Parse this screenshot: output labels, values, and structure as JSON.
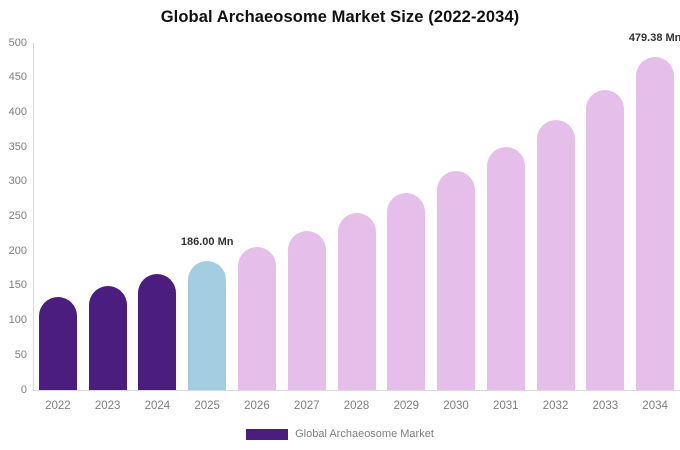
{
  "chart_data": {
    "type": "bar",
    "title": "Global Archaeosome Market Size (2022-2034)",
    "categories": [
      "2022",
      "2023",
      "2024",
      "2025",
      "2026",
      "2027",
      "2028",
      "2029",
      "2030",
      "2031",
      "2032",
      "2033",
      "2034"
    ],
    "values": [
      134.5,
      149.9,
      166.9,
      186.0,
      206.6,
      229.6,
      255.1,
      283.4,
      314.9,
      349.8,
      388.7,
      431.8,
      479.38
    ],
    "unit": "Mn",
    "xlabel": "",
    "ylabel": "",
    "ylim": [
      0,
      500
    ],
    "yticks": [
      0,
      50,
      100,
      150,
      200,
      250,
      300,
      350,
      400,
      450,
      500
    ],
    "grid": false,
    "legend_position": "bottom",
    "point_colors": [
      "#4B1D7E",
      "#4B1D7E",
      "#4B1D7E",
      "#A5CDE2",
      "#E5BFE9",
      "#E5BFE9",
      "#E5BFE9",
      "#E5BFE9",
      "#E5BFE9",
      "#E5BFE9",
      "#E5BFE9",
      "#E5BFE9",
      "#E5BFE9"
    ],
    "annotations": [
      {
        "category_index": 3,
        "text": "186.00 Mn"
      },
      {
        "category_index": 12,
        "text": "479.38 Mn"
      }
    ]
  },
  "legend": {
    "label": "Global Archaeosome Market",
    "swatch_color": "#4B1D7E"
  },
  "colors": {
    "past_bars": "#4B1D7E",
    "highlight_bar": "#A5CDE2",
    "forecast_bars": "#E5BFE9",
    "axis_line": "#D9D9D9",
    "tick_text": "#7F7F7F",
    "title_text": "#111111",
    "annotation_text": "#333333"
  }
}
